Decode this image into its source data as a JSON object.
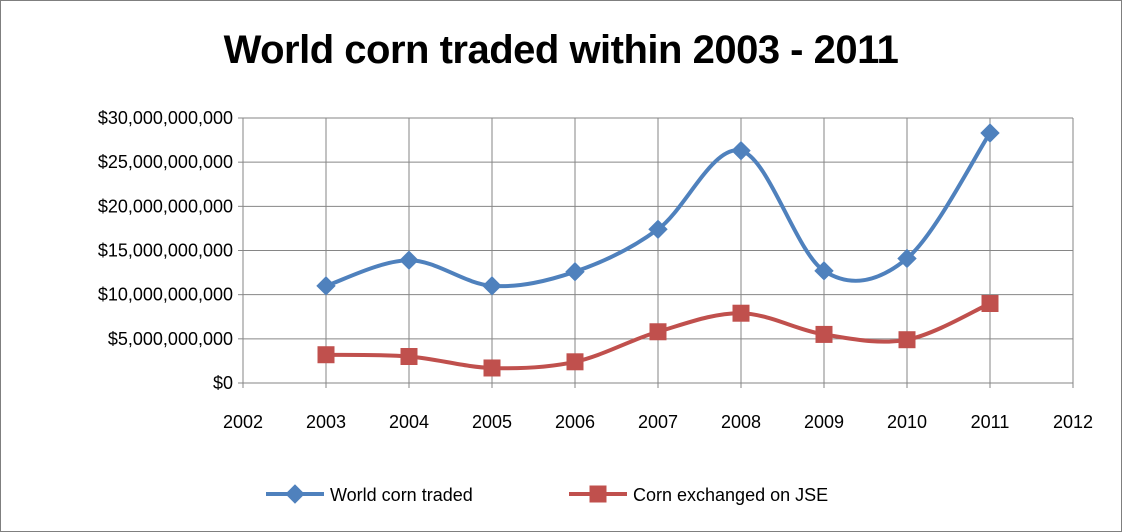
{
  "chart_data": {
    "type": "line",
    "title": "World corn traded within 2003 - 2011",
    "xlabel": "",
    "ylabel": "",
    "x_ticks": [
      "2002",
      "2003",
      "2004",
      "2005",
      "2006",
      "2007",
      "2008",
      "2009",
      "2010",
      "2011",
      "2012"
    ],
    "y_ticks": [
      "$0",
      "$5,000,000,000",
      "$10,000,000,000",
      "$15,000,000,000",
      "$20,000,000,000",
      "$25,000,000,000",
      "$30,000,000,000"
    ],
    "xlim": [
      2002,
      2012
    ],
    "ylim": [
      0,
      30000000000
    ],
    "grid": true,
    "smooth": true,
    "legend_position": "bottom",
    "x": [
      2003,
      2004,
      2005,
      2006,
      2007,
      2008,
      2009,
      2010,
      2011
    ],
    "series": [
      {
        "name": "World corn traded",
        "color": "#4f81bd",
        "marker": "diamond",
        "values": [
          11000000000,
          13900000000,
          11000000000,
          12600000000,
          17400000000,
          26300000000,
          12700000000,
          14100000000,
          28300000000
        ]
      },
      {
        "name": "Corn exchanged on JSE",
        "color": "#c0504d",
        "marker": "square",
        "values": [
          3200000000,
          3000000000,
          1700000000,
          2400000000,
          5800000000,
          7900000000,
          5500000000,
          4900000000,
          9000000000
        ]
      }
    ]
  }
}
